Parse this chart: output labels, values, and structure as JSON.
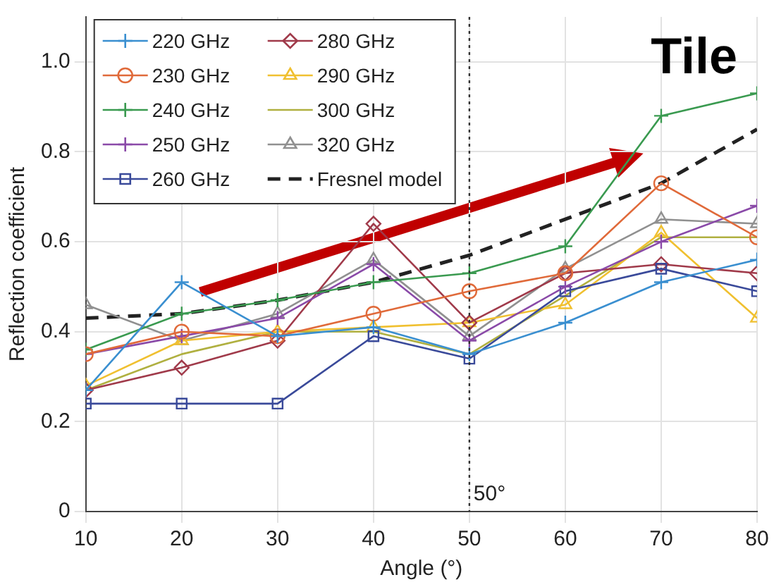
{
  "chart_data": {
    "type": "line",
    "xlabel": "Angle (°)",
    "ylabel": "Reflection coefficient",
    "x": [
      10,
      20,
      30,
      40,
      50,
      60,
      70,
      80
    ],
    "series": [
      {
        "name": "220 GHz",
        "color": "#3a8fd0",
        "marker": "cross",
        "values": [
          0.27,
          0.51,
          0.39,
          0.41,
          0.35,
          0.42,
          0.51,
          0.56
        ]
      },
      {
        "name": "230 GHz",
        "color": "#e06a3a",
        "marker": "circle",
        "values": [
          0.35,
          0.4,
          0.39,
          0.44,
          0.49,
          0.53,
          0.73,
          0.61
        ]
      },
      {
        "name": "240 GHz",
        "color": "#3a9a50",
        "marker": "cross",
        "values": [
          0.36,
          0.44,
          0.47,
          0.51,
          0.53,
          0.59,
          0.88,
          0.93
        ]
      },
      {
        "name": "250 GHz",
        "color": "#8a4aa8",
        "marker": "cross",
        "values": [
          0.35,
          0.39,
          0.43,
          0.55,
          0.38,
          0.5,
          0.6,
          0.68
        ]
      },
      {
        "name": "260 GHz",
        "color": "#3a4a9a",
        "marker": "square",
        "values": [
          0.24,
          0.24,
          0.24,
          0.39,
          0.34,
          0.49,
          0.54,
          0.49
        ]
      },
      {
        "name": "280 GHz",
        "color": "#a03a4a",
        "marker": "diamond",
        "values": [
          0.27,
          0.32,
          0.38,
          0.64,
          0.42,
          0.53,
          0.55,
          0.53
        ]
      },
      {
        "name": "290 GHz",
        "color": "#f0c030",
        "marker": "triangle",
        "values": [
          0.28,
          0.38,
          0.4,
          0.41,
          0.42,
          0.46,
          0.62,
          0.43
        ]
      },
      {
        "name": "300 GHz",
        "color": "#b0b040",
        "marker": "none",
        "values": [
          0.27,
          0.35,
          0.4,
          0.4,
          0.35,
          0.48,
          0.61,
          0.61
        ]
      },
      {
        "name": "320 GHz",
        "color": "#909090",
        "marker": "triangle",
        "values": [
          0.46,
          0.38,
          0.44,
          0.56,
          0.39,
          0.54,
          0.65,
          0.64
        ]
      },
      {
        "name": "Fresnel model",
        "color": "#222222",
        "marker": "none",
        "line_style": "dashed",
        "values": [
          0.43,
          0.44,
          0.47,
          0.51,
          0.57,
          0.65,
          0.73,
          0.85
        ]
      }
    ],
    "xlim": [
      10,
      80
    ],
    "xticks": [
      10,
      20,
      30,
      40,
      50,
      60,
      70,
      80
    ],
    "ylim": [
      0,
      1.1
    ],
    "yticks": [
      0,
      0.2,
      0.4,
      0.6,
      0.8,
      {
        "value": 1,
        "label": "1.0"
      }
    ],
    "grid": true,
    "legend": "top left",
    "ref_lines": [
      {
        "axis": "x",
        "value": 50,
        "label": "50°",
        "color": "#333333",
        "line_style": "dotted"
      }
    ],
    "annotations": [
      "Tile"
    ]
  }
}
